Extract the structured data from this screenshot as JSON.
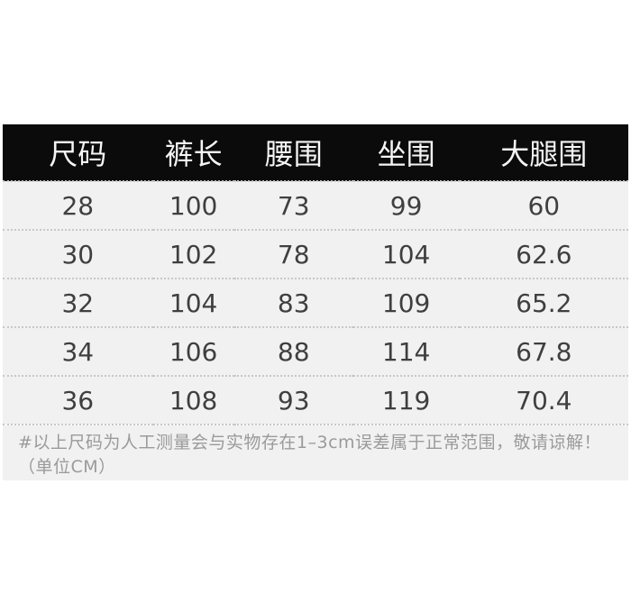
{
  "chart_data": {
    "type": "table",
    "title": "",
    "columns": [
      "尺码",
      "裤长",
      "腰围",
      "坐围",
      "大腿围"
    ],
    "rows": [
      [
        "28",
        "100",
        "73",
        "99",
        "60"
      ],
      [
        "30",
        "102",
        "78",
        "104",
        "62.6"
      ],
      [
        "32",
        "104",
        "83",
        "109",
        "65.2"
      ],
      [
        "34",
        "106",
        "88",
        "114",
        "67.8"
      ],
      [
        "36",
        "108",
        "93",
        "119",
        "70.4"
      ]
    ],
    "note": "#以上尺码为人工测量会与实物存在1–3cm误差属于正常范围，敬请谅解！（单位CM）",
    "unit": "CM",
    "layout_hints": {
      "header_style": "black band, white text",
      "row_separator": "dotted gray line",
      "grid": "horizontal only"
    }
  },
  "colors": {
    "page_bg": "#ffffff",
    "header_bg": "#0b0b0b",
    "header_text": "#f5f5f5",
    "row_bg": "#f1f1f1",
    "cell_text": "#3f3f3f",
    "note_text": "#9a9a9a",
    "divider": "#c8c8c8"
  }
}
